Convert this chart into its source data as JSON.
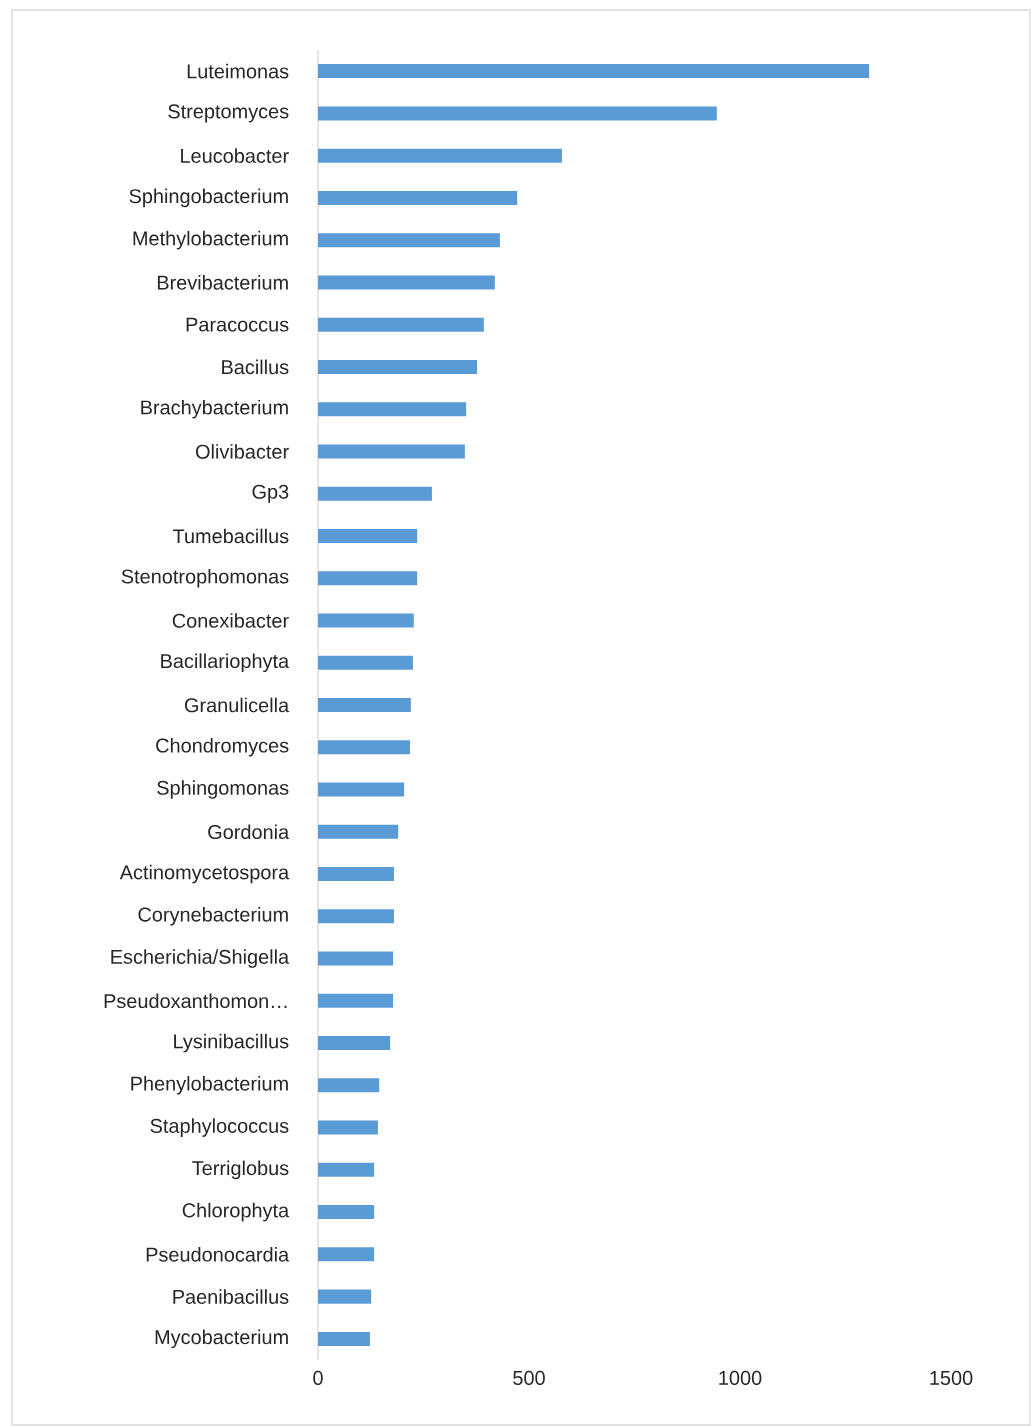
{
  "chart_data": {
    "type": "bar",
    "orientation": "horizontal",
    "color": "#5b9bd5",
    "categories": [
      "Luteimonas",
      "Streptomyces",
      "Leucobacter",
      "Sphingobacterium",
      "Methylobacterium",
      "Brevibacterium",
      "Paracoccus",
      "Bacillus",
      "Brachybacterium",
      "Olivibacter",
      "Gp3",
      "Tumebacillus",
      "Stenotrophomonas",
      "Conexibacter",
      "Bacillariophyta",
      "Granulicella",
      "Chondromyces",
      "Sphingomonas",
      "Gordonia",
      "Actinomycetospora",
      "Corynebacterium",
      "Escherichia/Shigella",
      "Pseudoxanthomon…",
      "Lysinibacillus",
      "Phenylobacterium",
      "Staphylococcus",
      "Terriglobus",
      "Chlorophyta",
      "Pseudonocardia",
      "Paenibacillus",
      "Mycobacterium"
    ],
    "values": [
      1306,
      945,
      578,
      472,
      431,
      419,
      393,
      377,
      351,
      348,
      270,
      235,
      235,
      227,
      225,
      220,
      218,
      204,
      190,
      180,
      180,
      178,
      178,
      171,
      145,
      142,
      133,
      133,
      133,
      126,
      123
    ],
    "xlim": [
      0,
      1500
    ],
    "xticks": [
      0,
      500,
      1000,
      1500
    ]
  }
}
